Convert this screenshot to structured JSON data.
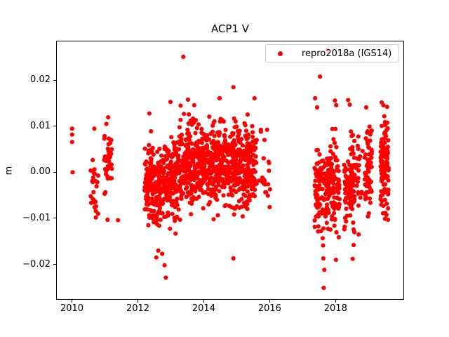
{
  "figure": {
    "title": "ACP1 V",
    "ylabel": "m"
  },
  "legend": {
    "label": "repro2018a (IGS14)",
    "marker_color": "#ff0000",
    "location": "upper right"
  },
  "chart_data": {
    "type": "scatter",
    "title": "ACP1 V",
    "xlabel": "",
    "ylabel": "m",
    "series_name": "repro2018a (IGS14)",
    "marker": {
      "color": "#ff0000",
      "radius_px": 3.1,
      "shape": "dot"
    },
    "axes": {
      "xlim": [
        2009.52,
        2020.08
      ],
      "ylim": [
        -0.0277,
        0.0286
      ],
      "grid": false,
      "background": "#ffffff",
      "spine_color": "#000000",
      "xticks": [
        2010,
        2012,
        2014,
        2016,
        2018
      ],
      "xtick_labels": [
        "2010",
        "2012",
        "2014",
        "2016",
        "2018"
      ],
      "yticks": [
        0.02,
        0.01,
        0.0,
        -0.01,
        -0.02
      ],
      "ytick_labels": [
        "0.02",
        "0.01",
        "0.00",
        "−0.01",
        "−0.02"
      ]
    },
    "seed": 20180914,
    "cluster_fields": [
      "t_start",
      "t_end",
      "n_points",
      "mean_start",
      "mean_end",
      "std",
      "min",
      "max"
    ],
    "clusters": [
      [
        2010.55,
        2010.8,
        24,
        -0.0045,
        -0.0045,
        0.005,
        -0.0156,
        0.0062
      ],
      [
        2010.96,
        2011.22,
        40,
        0.003,
        0.003,
        0.0045,
        -0.0073,
        0.0127
      ],
      [
        2012.2,
        2012.75,
        190,
        -0.0035,
        -0.0028,
        0.004,
        -0.0146,
        0.0092
      ],
      [
        2012.75,
        2013.2,
        160,
        -0.0022,
        -0.0012,
        0.0042,
        -0.0135,
        0.0118
      ],
      [
        2013.2,
        2014.2,
        340,
        0.0012,
        0.002,
        0.0042,
        -0.0095,
        0.0128
      ],
      [
        2014.2,
        2015.4,
        400,
        0.0022,
        0.0022,
        0.0042,
        -0.0098,
        0.0132
      ],
      [
        2015.4,
        2015.62,
        48,
        0.0018,
        0.0018,
        0.0042,
        -0.0062,
        0.0122
      ],
      [
        2015.68,
        2016.04,
        20,
        0.0005,
        -0.001,
        0.0048,
        -0.0076,
        0.0096
      ],
      [
        2017.36,
        2018.12,
        215,
        -0.0035,
        -0.003,
        0.0052,
        -0.0158,
        0.0105
      ],
      [
        2018.26,
        2018.58,
        105,
        -0.0022,
        -0.0022,
        0.0048,
        -0.0136,
        0.0132
      ],
      [
        2018.62,
        2018.82,
        22,
        0.0002,
        0.0002,
        0.0045,
        -0.0086,
        0.0097
      ],
      [
        2018.88,
        2019.1,
        62,
        0.0008,
        0.0008,
        0.0048,
        -0.0126,
        0.0141
      ],
      [
        2019.36,
        2019.61,
        110,
        0.0015,
        0.0015,
        0.005,
        -0.0104,
        0.015
      ]
    ],
    "outlier_points": [
      [
        2010.005,
        0.0095
      ],
      [
        2010.005,
        0.0082
      ],
      [
        2010.005,
        0.0066
      ],
      [
        2010.02,
        0.0
      ],
      [
        2010.68,
        0.0095
      ],
      [
        2011.08,
        -0.0103
      ],
      [
        2011.4,
        -0.0104
      ],
      [
        2012.35,
        0.0128
      ],
      [
        2012.99,
        0.0153
      ],
      [
        2012.56,
        -0.0185
      ],
      [
        2012.62,
        -0.017
      ],
      [
        2012.74,
        -0.0177
      ],
      [
        2012.81,
        -0.0202
      ],
      [
        2012.85,
        -0.0229
      ],
      [
        2013.38,
        0.0251
      ],
      [
        2013.3,
        0.0145
      ],
      [
        2013.52,
        0.0158
      ],
      [
        2013.71,
        0.0146
      ],
      [
        2013.4,
        0.0127
      ],
      [
        2013.55,
        0.0126
      ],
      [
        2013.28,
        -0.0103
      ],
      [
        2014.48,
        0.0161
      ],
      [
        2014.9,
        0.0185
      ],
      [
        2014.3,
        -0.0102
      ],
      [
        2014.9,
        -0.0187
      ],
      [
        2014.78,
        -0.0073
      ],
      [
        2014.85,
        -0.0076
      ],
      [
        2014.92,
        -0.0078
      ],
      [
        2015.0,
        -0.0074
      ],
      [
        2015.08,
        -0.0077
      ],
      [
        2015.15,
        -0.0075
      ],
      [
        2015.54,
        0.0161
      ],
      [
        2016.01,
        -0.0037
      ],
      [
        2017.38,
        0.0161
      ],
      [
        2017.44,
        0.0141
      ],
      [
        2017.53,
        0.0208
      ],
      [
        2017.745,
        0.0266
      ],
      [
        2017.62,
        -0.0159
      ],
      [
        2017.63,
        -0.0187
      ],
      [
        2017.66,
        -0.0212
      ],
      [
        2017.64,
        -0.0251
      ],
      [
        2017.98,
        0.0156
      ],
      [
        2018.02,
        0.0146
      ],
      [
        2018.01,
        -0.019
      ],
      [
        2018.38,
        0.0157
      ],
      [
        2018.43,
        0.0147
      ],
      [
        2018.52,
        -0.0188
      ],
      [
        2018.55,
        -0.0158
      ],
      [
        2018.57,
        -0.013
      ],
      [
        2018.7,
        -0.0135
      ],
      [
        2018.93,
        0.0141
      ],
      [
        2019.4,
        0.0152
      ],
      [
        2019.45,
        0.0146
      ],
      [
        2019.5,
        -0.0101
      ]
    ]
  }
}
